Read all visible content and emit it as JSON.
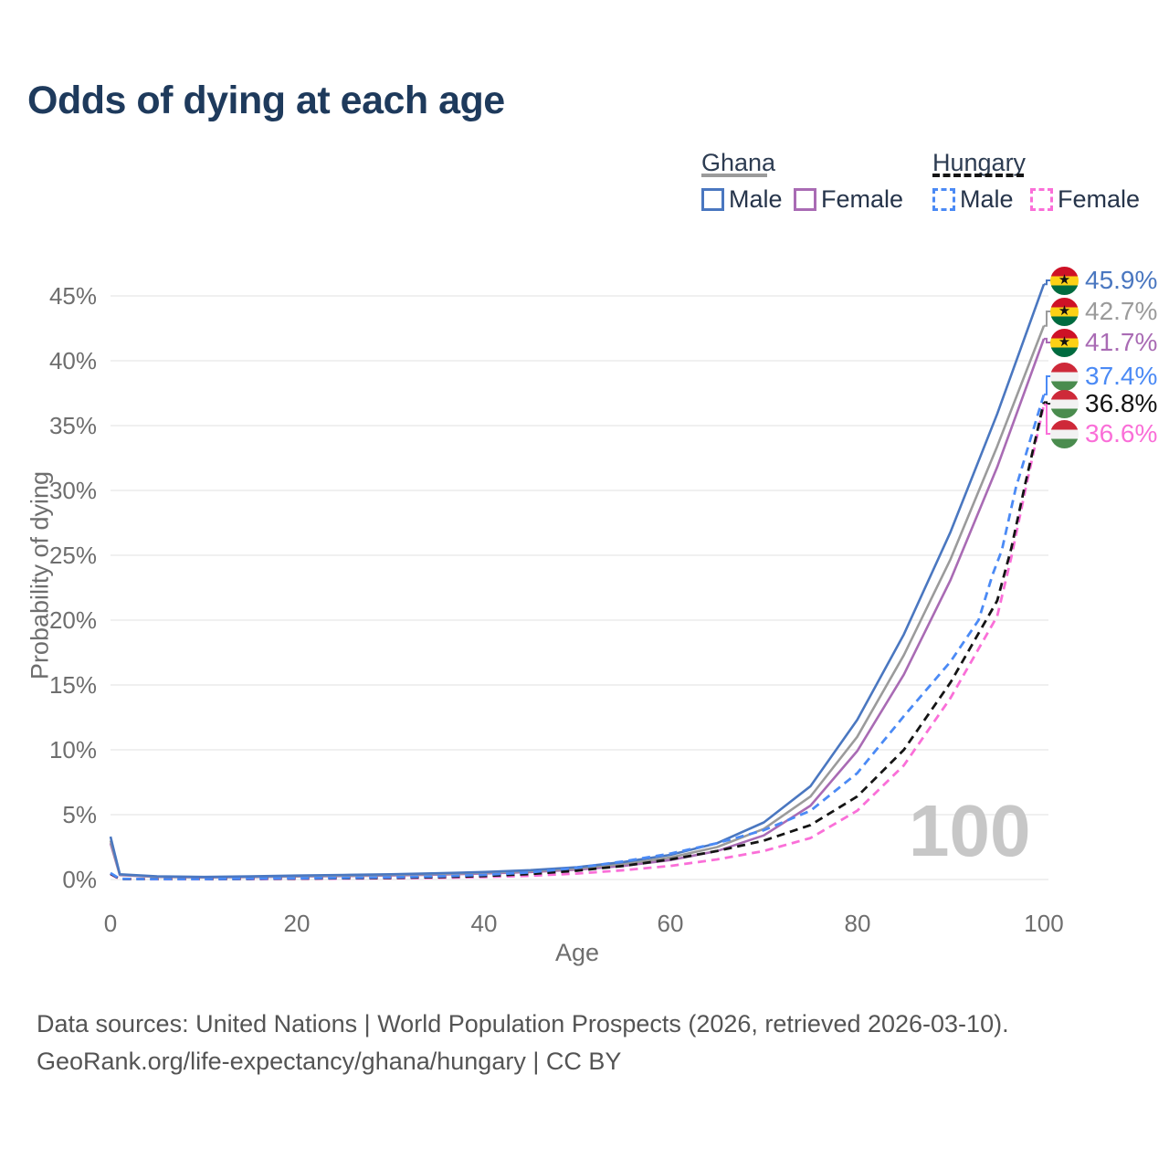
{
  "title": "Odds of dying at each age",
  "icons": {
    "ghana_star": "★"
  },
  "legend": {
    "groups": [
      {
        "label": "Ghana",
        "line_style": "solid",
        "line_color": "#9b9b9b",
        "items": [
          {
            "label": "Male",
            "color": "#4a77c0",
            "style": "solid"
          },
          {
            "label": "Female",
            "color": "#a96bb4",
            "style": "solid"
          }
        ]
      },
      {
        "label": "Hungary",
        "line_style": "dashed",
        "line_color": "#151515",
        "items": [
          {
            "label": "Male",
            "color": "#4b8af5",
            "style": "dashed"
          },
          {
            "label": "Female",
            "color": "#fa6fd8",
            "style": "dashed"
          }
        ]
      }
    ]
  },
  "chart_data": {
    "type": "line",
    "title": "Odds of dying at each age",
    "xlabel": "Age",
    "ylabel": "Probability of dying",
    "xlim": [
      0,
      100
    ],
    "ylim": [
      0,
      46
    ],
    "x_ticks": [
      "0",
      "20",
      "40",
      "60",
      "80",
      "100"
    ],
    "y_ticks": [
      "0%",
      "5%",
      "10%",
      "15%",
      "20%",
      "25%",
      "30%",
      "35%",
      "40%",
      "45%"
    ],
    "grid": "horizontal",
    "watermark": "100",
    "legend_position": "top-right",
    "series": [
      {
        "name": "Ghana Male",
        "country": "Ghana",
        "sex": "Male",
        "color": "#4a77c0",
        "dash": "solid",
        "end_label": "45.9%",
        "end_value": 45.9,
        "points": [
          [
            0,
            3.3
          ],
          [
            1,
            0.4
          ],
          [
            5,
            0.25
          ],
          [
            10,
            0.2
          ],
          [
            15,
            0.24
          ],
          [
            20,
            0.3
          ],
          [
            25,
            0.35
          ],
          [
            30,
            0.4
          ],
          [
            35,
            0.48
          ],
          [
            40,
            0.58
          ],
          [
            45,
            0.72
          ],
          [
            50,
            0.95
          ],
          [
            55,
            1.35
          ],
          [
            60,
            1.9
          ],
          [
            65,
            2.8
          ],
          [
            70,
            4.4
          ],
          [
            75,
            7.2
          ],
          [
            80,
            12.3
          ],
          [
            85,
            18.9
          ],
          [
            90,
            26.8
          ],
          [
            95,
            35.9
          ],
          [
            100,
            45.9
          ]
        ]
      },
      {
        "name": "Ghana Both sexes",
        "country": "Ghana",
        "sex": "Both",
        "color": "#9b9b9b",
        "dash": "solid",
        "end_label": "42.7%",
        "end_value": 42.7,
        "points": [
          [
            0,
            3.0
          ],
          [
            1,
            0.37
          ],
          [
            5,
            0.22
          ],
          [
            10,
            0.18
          ],
          [
            15,
            0.21
          ],
          [
            20,
            0.26
          ],
          [
            25,
            0.3
          ],
          [
            30,
            0.35
          ],
          [
            35,
            0.42
          ],
          [
            40,
            0.52
          ],
          [
            45,
            0.65
          ],
          [
            50,
            0.85
          ],
          [
            55,
            1.2
          ],
          [
            60,
            1.7
          ],
          [
            65,
            2.5
          ],
          [
            70,
            3.9
          ],
          [
            75,
            6.4
          ],
          [
            80,
            11.0
          ],
          [
            85,
            17.3
          ],
          [
            90,
            24.7
          ],
          [
            95,
            33.4
          ],
          [
            100,
            42.7
          ]
        ]
      },
      {
        "name": "Ghana Female",
        "country": "Ghana",
        "sex": "Female",
        "color": "#a96bb4",
        "dash": "solid",
        "end_label": "41.7%",
        "end_value": 41.7,
        "points": [
          [
            0,
            2.8
          ],
          [
            1,
            0.34
          ],
          [
            5,
            0.2
          ],
          [
            10,
            0.16
          ],
          [
            15,
            0.19
          ],
          [
            20,
            0.23
          ],
          [
            25,
            0.27
          ],
          [
            30,
            0.31
          ],
          [
            35,
            0.37
          ],
          [
            40,
            0.46
          ],
          [
            45,
            0.58
          ],
          [
            50,
            0.76
          ],
          [
            55,
            1.05
          ],
          [
            60,
            1.5
          ],
          [
            65,
            2.2
          ],
          [
            70,
            3.4
          ],
          [
            75,
            5.7
          ],
          [
            80,
            9.9
          ],
          [
            85,
            15.8
          ],
          [
            90,
            23.1
          ],
          [
            95,
            31.8
          ],
          [
            100,
            41.7
          ]
        ]
      },
      {
        "name": "Hungary Male",
        "country": "Hungary",
        "sex": "Male",
        "color": "#4b8af5",
        "dash": "dashed",
        "end_label": "37.4%",
        "end_value": 37.4,
        "points": [
          [
            0,
            0.5
          ],
          [
            1,
            0.05
          ],
          [
            5,
            0.03
          ],
          [
            10,
            0.03
          ],
          [
            15,
            0.06
          ],
          [
            20,
            0.1
          ],
          [
            25,
            0.13
          ],
          [
            30,
            0.17
          ],
          [
            35,
            0.24
          ],
          [
            40,
            0.35
          ],
          [
            45,
            0.55
          ],
          [
            50,
            0.9
          ],
          [
            55,
            1.4
          ],
          [
            60,
            2.0
          ],
          [
            65,
            2.8
          ],
          [
            70,
            3.8
          ],
          [
            75,
            5.3
          ],
          [
            80,
            8.2
          ],
          [
            85,
            12.6
          ],
          [
            90,
            16.8
          ],
          [
            93,
            20.0
          ],
          [
            94.5,
            23.5
          ],
          [
            95.5,
            25.4
          ],
          [
            97,
            30.2
          ],
          [
            100,
            37.4
          ]
        ]
      },
      {
        "name": "Hungary Both sexes",
        "country": "Hungary",
        "sex": "Both",
        "color": "#141414",
        "dash": "dashed",
        "end_label": "36.8%",
        "end_value": 36.8,
        "points": [
          [
            0,
            0.45
          ],
          [
            1,
            0.04
          ],
          [
            5,
            0.025
          ],
          [
            10,
            0.025
          ],
          [
            15,
            0.05
          ],
          [
            20,
            0.08
          ],
          [
            25,
            0.1
          ],
          [
            30,
            0.13
          ],
          [
            35,
            0.18
          ],
          [
            40,
            0.27
          ],
          [
            45,
            0.42
          ],
          [
            50,
            0.68
          ],
          [
            55,
            1.05
          ],
          [
            60,
            1.55
          ],
          [
            65,
            2.2
          ],
          [
            70,
            3.0
          ],
          [
            75,
            4.2
          ],
          [
            80,
            6.4
          ],
          [
            85,
            10.0
          ],
          [
            90,
            15.2
          ],
          [
            95,
            21.5
          ],
          [
            96.5,
            25.5
          ],
          [
            98,
            30.5
          ],
          [
            100,
            36.8
          ]
        ]
      },
      {
        "name": "Hungary Female",
        "country": "Hungary",
        "sex": "Female",
        "color": "#fa6fd8",
        "dash": "dashed",
        "end_label": "36.6%",
        "end_value": 36.6,
        "points": [
          [
            0,
            0.4
          ],
          [
            1,
            0.035
          ],
          [
            5,
            0.02
          ],
          [
            10,
            0.02
          ],
          [
            15,
            0.03
          ],
          [
            20,
            0.05
          ],
          [
            25,
            0.07
          ],
          [
            30,
            0.09
          ],
          [
            35,
            0.13
          ],
          [
            40,
            0.19
          ],
          [
            45,
            0.29
          ],
          [
            50,
            0.46
          ],
          [
            55,
            0.72
          ],
          [
            60,
            1.05
          ],
          [
            65,
            1.55
          ],
          [
            70,
            2.2
          ],
          [
            75,
            3.2
          ],
          [
            80,
            5.3
          ],
          [
            85,
            8.8
          ],
          [
            90,
            14.0
          ],
          [
            95,
            20.3
          ],
          [
            96.5,
            24.8
          ],
          [
            98,
            30.0
          ],
          [
            100,
            36.6
          ]
        ]
      }
    ]
  },
  "footer": {
    "line1": "Data sources: United Nations | World Population Prospects (2026, retrieved 2026-03-10).",
    "line2": "GeoRank.org/life-expectancy/ghana/hungary | CC BY"
  }
}
